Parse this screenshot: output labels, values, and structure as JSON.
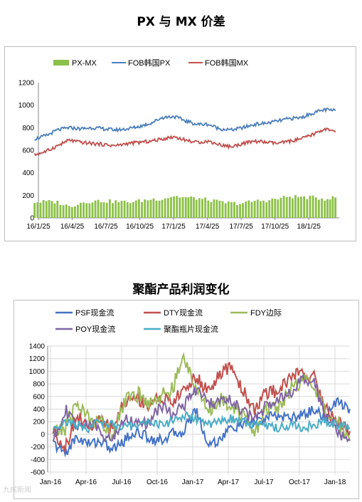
{
  "charts_header": {
    "title_1": "PX 与 MX 价差",
    "title_2": "聚酯产品利润变化"
  },
  "colors": {
    "px_mx": "#8cc048",
    "fob_px": "#4a7ebb",
    "fob_mx": "#c0504d",
    "psf": "#4472c4",
    "dty": "#c0504d",
    "fdy": "#9bbb59",
    "poy": "#8064a2",
    "bottle": "#4bacc6",
    "grid": "#d9d9d9"
  },
  "watermark": "九成新闻",
  "chart_data": [
    {
      "type": "line",
      "title": "PX 与 MX 价差",
      "xlabel": "",
      "ylabel": "",
      "ylim": [
        0,
        1200
      ],
      "yticks": [
        0,
        200,
        400,
        600,
        800,
        1000,
        1200
      ],
      "xlim": [
        "2016-01-25",
        "2018-03-25"
      ],
      "x_tick_labels": [
        "16/1/25",
        "16/4/25",
        "16/7/25",
        "16/10/25",
        "17/1/25",
        "17/4/25",
        "17/7/25",
        "17/10/25",
        "18/1/25"
      ],
      "grid": false,
      "legend": "top",
      "series": [
        {
          "name": "PX-MX",
          "style": "bar",
          "x": [
            "2016-01",
            "2016-02",
            "2016-03",
            "2016-04",
            "2016-05",
            "2016-06",
            "2016-07",
            "2016-08",
            "2016-09",
            "2016-10",
            "2016-11",
            "2016-12",
            "2017-01",
            "2017-02",
            "2017-03",
            "2017-04",
            "2017-05",
            "2017-06",
            "2017-07",
            "2017-08",
            "2017-09",
            "2017-10",
            "2017-11",
            "2017-12",
            "2018-01",
            "2018-02",
            "2018-03"
          ],
          "values": [
            140,
            145,
            140,
            100,
            135,
            150,
            150,
            145,
            140,
            150,
            165,
            170,
            195,
            180,
            175,
            160,
            140,
            130,
            130,
            150,
            155,
            170,
            190,
            185,
            180,
            170,
            180
          ]
        },
        {
          "name": "FOB韩国PX",
          "x": [
            "2016-01",
            "2016-02",
            "2016-03",
            "2016-04",
            "2016-05",
            "2016-06",
            "2016-07",
            "2016-08",
            "2016-09",
            "2016-10",
            "2016-11",
            "2016-12",
            "2017-01",
            "2017-02",
            "2017-03",
            "2017-04",
            "2017-05",
            "2017-06",
            "2017-07",
            "2017-08",
            "2017-09",
            "2017-10",
            "2017-11",
            "2017-12",
            "2018-01",
            "2018-02",
            "2018-03"
          ],
          "values": [
            700,
            730,
            780,
            800,
            790,
            800,
            790,
            780,
            790,
            810,
            840,
            890,
            900,
            860,
            830,
            830,
            790,
            780,
            800,
            830,
            840,
            860,
            880,
            890,
            930,
            960,
            950
          ]
        },
        {
          "name": "FOB韩国MX",
          "x": [
            "2016-01",
            "2016-02",
            "2016-03",
            "2016-04",
            "2016-05",
            "2016-06",
            "2016-07",
            "2016-08",
            "2016-09",
            "2016-10",
            "2016-11",
            "2016-12",
            "2017-01",
            "2017-02",
            "2017-03",
            "2017-04",
            "2017-05",
            "2017-06",
            "2017-07",
            "2017-08",
            "2017-09",
            "2017-10",
            "2017-11",
            "2017-12",
            "2018-01",
            "2018-02",
            "2018-03"
          ],
          "values": [
            560,
            590,
            640,
            690,
            670,
            660,
            650,
            640,
            660,
            670,
            680,
            700,
            720,
            690,
            670,
            680,
            650,
            630,
            660,
            680,
            670,
            660,
            680,
            700,
            740,
            790,
            760
          ]
        }
      ]
    },
    {
      "type": "line",
      "title": "聚酯产品利润变化",
      "xlabel": "",
      "ylabel": "",
      "ylim": [
        -600,
        1400
      ],
      "yticks": [
        -600,
        -400,
        -200,
        0,
        200,
        400,
        600,
        800,
        1000,
        1200,
        1400
      ],
      "xlim": [
        "2016-01-01",
        "2018-02-15"
      ],
      "x_tick_labels": [
        "Jan-16",
        "Apr-16",
        "Jul-16",
        "Oct-16",
        "Jan-17",
        "Apr-17",
        "Jul-17",
        "Oct-17",
        "Jan-18"
      ],
      "grid": true,
      "legend": "top",
      "series": [
        {
          "name": "PSF现金流",
          "x": [
            "2016-01",
            "2016-02",
            "2016-03",
            "2016-04",
            "2016-05",
            "2016-06",
            "2016-07",
            "2016-08",
            "2016-09",
            "2016-10",
            "2016-11",
            "2016-12",
            "2017-01",
            "2017-02",
            "2017-03",
            "2017-04",
            "2017-05",
            "2017-06",
            "2017-07",
            "2017-08",
            "2017-09",
            "2017-10",
            "2017-11",
            "2017-12",
            "2018-01",
            "2018-02"
          ],
          "values": [
            -150,
            -300,
            -50,
            -150,
            -100,
            -250,
            -100,
            50,
            -50,
            -100,
            0,
            50,
            400,
            -150,
            -100,
            100,
            150,
            200,
            250,
            300,
            250,
            300,
            400,
            250,
            550,
            400
          ]
        },
        {
          "name": "DTY现金流",
          "x": [
            "2016-01",
            "2016-02",
            "2016-03",
            "2016-04",
            "2016-05",
            "2016-06",
            "2016-07",
            "2016-08",
            "2016-09",
            "2016-10",
            "2016-11",
            "2016-12",
            "2017-01",
            "2017-02",
            "2017-03",
            "2017-04",
            "2017-05",
            "2017-06",
            "2017-07",
            "2017-08",
            "2017-09",
            "2017-10",
            "2017-11",
            "2017-12",
            "2018-01",
            "2018-02"
          ],
          "values": [
            50,
            -200,
            300,
            100,
            200,
            100,
            500,
            600,
            450,
            600,
            500,
            700,
            900,
            700,
            900,
            1100,
            700,
            400,
            650,
            700,
            900,
            1000,
            900,
            400,
            200,
            50
          ]
        },
        {
          "name": "FDY边际",
          "x": [
            "2016-01",
            "2016-02",
            "2016-03",
            "2016-04",
            "2016-05",
            "2016-06",
            "2016-07",
            "2016-08",
            "2016-09",
            "2016-10",
            "2016-11",
            "2016-12",
            "2017-01",
            "2017-02",
            "2017-03",
            "2017-04",
            "2017-05",
            "2017-06",
            "2017-07",
            "2017-08",
            "2017-09",
            "2017-10",
            "2017-11",
            "2017-12",
            "2018-01",
            "2018-02"
          ],
          "values": [
            0,
            100,
            500,
            250,
            200,
            0,
            500,
            650,
            500,
            600,
            700,
            1200,
            800,
            300,
            550,
            500,
            300,
            0,
            400,
            450,
            700,
            850,
            800,
            300,
            200,
            -100
          ]
        },
        {
          "name": "POY现金流",
          "x": [
            "2016-01",
            "2016-02",
            "2016-03",
            "2016-04",
            "2016-05",
            "2016-06",
            "2016-07",
            "2016-08",
            "2016-09",
            "2016-10",
            "2016-11",
            "2016-12",
            "2017-01",
            "2017-02",
            "2017-03",
            "2017-04",
            "2017-05",
            "2017-06",
            "2017-07",
            "2017-08",
            "2017-09",
            "2017-10",
            "2017-11",
            "2017-12",
            "2018-01",
            "2018-02"
          ],
          "values": [
            -100,
            400,
            100,
            200,
            50,
            -100,
            250,
            200,
            150,
            450,
            350,
            450,
            700,
            500,
            500,
            550,
            350,
            250,
            450,
            600,
            650,
            850,
            800,
            300,
            50,
            -100
          ]
        },
        {
          "name": "聚酯瓶片现金流",
          "x": [
            "2016-01",
            "2016-02",
            "2016-03",
            "2016-04",
            "2016-05",
            "2016-06",
            "2016-07",
            "2016-08",
            "2016-09",
            "2016-10",
            "2016-11",
            "2016-12",
            "2017-01",
            "2017-02",
            "2017-03",
            "2017-04",
            "2017-05",
            "2017-06",
            "2017-07",
            "2017-08",
            "2017-09",
            "2017-10",
            "2017-11",
            "2017-12",
            "2018-01",
            "2018-02"
          ],
          "values": [
            100,
            200,
            150,
            100,
            200,
            150,
            100,
            150,
            200,
            150,
            200,
            300,
            250,
            150,
            200,
            250,
            200,
            150,
            150,
            100,
            150,
            100,
            150,
            200,
            150,
            100
          ]
        }
      ]
    }
  ]
}
